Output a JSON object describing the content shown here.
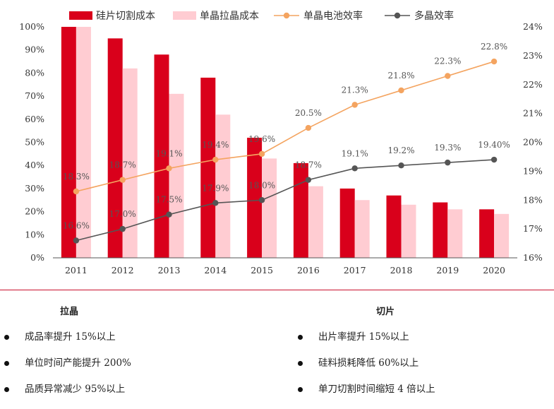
{
  "chart_data": {
    "type": "bar+line",
    "categories": [
      "2011",
      "2012",
      "2013",
      "2014",
      "2015",
      "2016",
      "2017",
      "2018",
      "2019",
      "2020"
    ],
    "bar_series": [
      {
        "name": "硅片切割成本",
        "color": "#d9001b",
        "values": [
          100,
          95,
          88,
          78,
          52,
          41,
          30,
          27,
          24,
          21
        ]
      },
      {
        "name": "单晶拉晶成本",
        "color": "#ffccd2",
        "values": [
          100,
          82,
          71,
          62,
          43,
          31,
          25,
          23,
          21,
          19
        ]
      }
    ],
    "line_series": [
      {
        "name": "单晶电池效率",
        "color": "#f4a460",
        "values": [
          18.3,
          18.7,
          19.1,
          19.4,
          19.6,
          20.5,
          21.3,
          21.8,
          22.3,
          22.8
        ],
        "labels": [
          "18.3%",
          "18.7%",
          "19.1%",
          "19.4%",
          "19.6%",
          "20.5%",
          "21.3%",
          "21.8%",
          "22.3%",
          "22.8%"
        ]
      },
      {
        "name": "多晶效率",
        "color": "#555555",
        "values": [
          16.6,
          17.0,
          17.5,
          17.9,
          18.0,
          18.7,
          19.1,
          19.2,
          19.3,
          19.4
        ],
        "labels": [
          "16.6%",
          "17.0%",
          "17.5%",
          "17.9%",
          "18.0%",
          "18.7%",
          "19.1%",
          "19.2%",
          "19.3%",
          "19.40%"
        ]
      }
    ],
    "y_left": {
      "min": 0,
      "max": 100,
      "step": 10,
      "ticks": [
        "0%",
        "10%",
        "20%",
        "30%",
        "40%",
        "50%",
        "60%",
        "70%",
        "80%",
        "90%",
        "100%"
      ]
    },
    "y_right": {
      "min": 16,
      "max": 24,
      "step": 1,
      "ticks": [
        "16%",
        "17%",
        "18%",
        "19%",
        "20%",
        "21%",
        "22%",
        "23%",
        "24%"
      ]
    },
    "legend_position": "top"
  },
  "sections": {
    "left": {
      "heading": "拉晶",
      "items": [
        "成品率提升 15%以上",
        "单位时间产能提升 200%",
        "品质异常减少 95%以上"
      ]
    },
    "right": {
      "heading": "切片",
      "items": [
        "出片率提升 15%以上",
        "硅料损耗降低 60%以上",
        "单刀切割时间缩短 4 倍以上"
      ]
    }
  }
}
